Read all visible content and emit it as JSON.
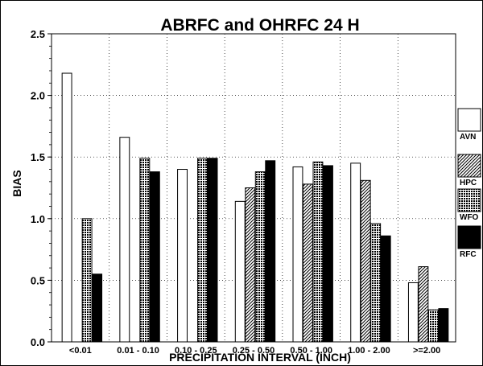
{
  "chart_data": {
    "type": "bar",
    "title": "ABRFC and OHRFC  24 H",
    "xlabel": "PRECIPITATION INTERVAL (INCH)",
    "ylabel": "BIAS",
    "ylim": [
      0,
      2.5
    ],
    "yticks": [
      "0.0",
      "0.5",
      "1.0",
      "1.5",
      "2.0",
      "2.5"
    ],
    "grid": true,
    "legend_position": "right",
    "categories": [
      "<0.01",
      "0.01 - 0.10",
      "0.10 - 0.25",
      "0.25 - 0.50",
      "0.50 - 1.00",
      "1.00 - 2.00",
      ">=2.00"
    ],
    "series": [
      {
        "name": "AVN",
        "pattern": "open",
        "values": [
          2.18,
          1.66,
          1.4,
          1.14,
          1.42,
          1.45,
          0.48
        ]
      },
      {
        "name": "HPC",
        "pattern": "hatched",
        "values": [
          null,
          null,
          null,
          1.25,
          1.28,
          1.31,
          0.61
        ]
      },
      {
        "name": "WFO",
        "pattern": "crosshatched",
        "values": [
          1.0,
          1.49,
          1.49,
          1.38,
          1.46,
          0.96,
          0.26
        ]
      },
      {
        "name": "RFC",
        "pattern": "solid",
        "values": [
          0.55,
          1.38,
          1.49,
          1.47,
          1.43,
          0.86,
          0.27
        ]
      }
    ]
  }
}
